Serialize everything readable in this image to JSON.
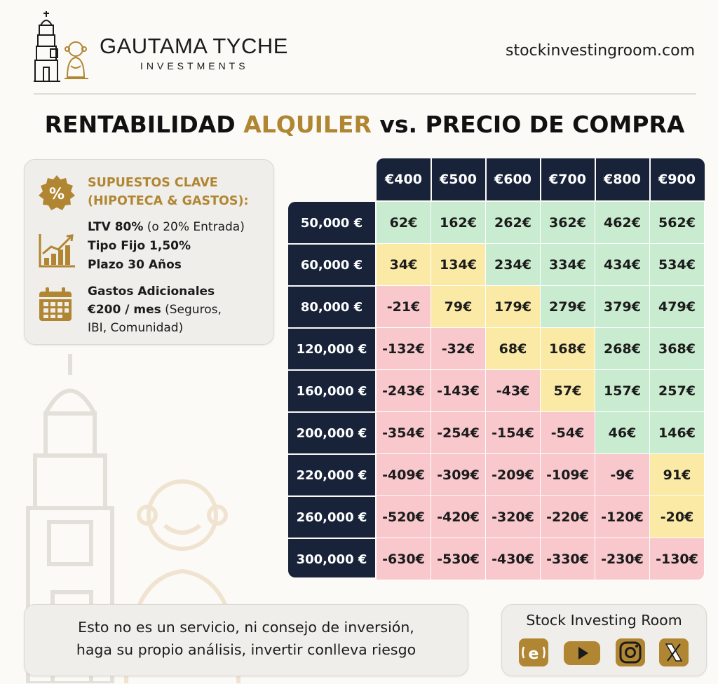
{
  "header": {
    "brand_name": "GAUTAMA TYCHE",
    "brand_sub": "INVESTMENTS",
    "site": "stockinvestingroom.com"
  },
  "title": {
    "part1": "RENTABILIDAD ",
    "accent": "ALQUILER",
    "part2": " vs. PRECIO DE COMPRA"
  },
  "assumptions": {
    "heading": "SUPUESTOS CLAVE (HIPOTECA & GASTOS):",
    "ltv_bold": "LTV 80%",
    "ltv_rest": " (o 20% Entrada)",
    "rate": "Tipo Fijo 1,50%",
    "term": "Plazo 30 Años",
    "costs_title": "Gastos Adicionales",
    "costs_bold": "€200 / mes",
    "costs_rest": " (Seguros,",
    "costs_rest2": "IBI, Comunidad)"
  },
  "colors": {
    "navy": "#182339",
    "gold": "#b08632",
    "green": "#c9ebcf",
    "yellow": "#fbeaa6",
    "red": "#f8c8cd"
  },
  "chart_data": {
    "type": "table",
    "title": "RENTABILIDAD ALQUILER vs. PRECIO DE COMPRA",
    "columns": [
      "€400",
      "€500",
      "€600",
      "€700",
      "€800",
      "€900"
    ],
    "rows": [
      "50,000 €",
      "60,000 €",
      "80,000 €",
      "120,000 €",
      "160,000 €",
      "200,000 €",
      "220,000 €",
      "260,000 €",
      "300,000 €"
    ],
    "values": [
      [
        "62€",
        "162€",
        "262€",
        "362€",
        "462€",
        "562€"
      ],
      [
        "34€",
        "134€",
        "234€",
        "334€",
        "434€",
        "534€"
      ],
      [
        "-21€",
        "79€",
        "179€",
        "279€",
        "379€",
        "479€"
      ],
      [
        "-132€",
        "-32€",
        "68€",
        "168€",
        "268€",
        "368€"
      ],
      [
        "-243€",
        "-143€",
        "-43€",
        "57€",
        "157€",
        "257€"
      ],
      [
        "-354€",
        "-254€",
        "-154€",
        "-54€",
        "46€",
        "146€"
      ],
      [
        "-409€",
        "-309€",
        "-209€",
        "-109€",
        "-9€",
        "91€"
      ],
      [
        "-520€",
        "-420€",
        "-320€",
        "-220€",
        "-120€",
        "-20€"
      ],
      [
        "-630€",
        "-530€",
        "-430€",
        "-330€",
        "-230€",
        "-130€"
      ]
    ],
    "status": [
      [
        "g",
        "g",
        "g",
        "g",
        "g",
        "g"
      ],
      [
        "y",
        "y",
        "g",
        "g",
        "g",
        "g"
      ],
      [
        "r",
        "y",
        "y",
        "g",
        "g",
        "g"
      ],
      [
        "r",
        "r",
        "y",
        "y",
        "g",
        "g"
      ],
      [
        "r",
        "r",
        "r",
        "y",
        "g",
        "g"
      ],
      [
        "r",
        "r",
        "r",
        "r",
        "g",
        "g"
      ],
      [
        "r",
        "r",
        "r",
        "r",
        "r",
        "y"
      ],
      [
        "r",
        "r",
        "r",
        "r",
        "r",
        "y"
      ],
      [
        "r",
        "r",
        "r",
        "r",
        "r",
        "r"
      ]
    ]
  },
  "footer": {
    "disclaimer_line1": "Esto no es un servicio, ni consejo de inversión,",
    "disclaimer_line2": "haga su propio análisis, invertir conlleva riesgo",
    "social_title": "Stock Investing Room",
    "social_icons": [
      "etoro-icon",
      "youtube-icon",
      "instagram-icon",
      "x-icon"
    ]
  }
}
